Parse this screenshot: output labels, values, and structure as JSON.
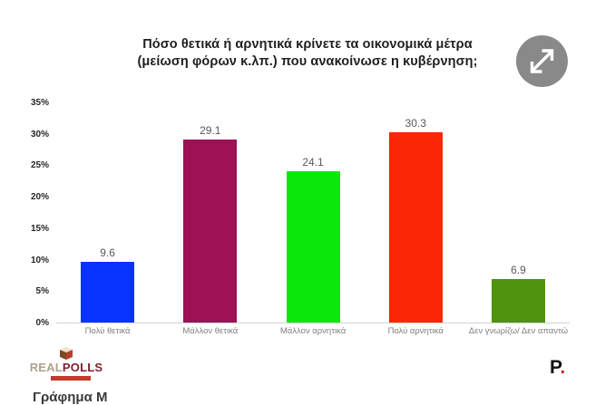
{
  "chart_data": {
    "type": "bar",
    "title": "Πόσο θετικά ή αρνητικά κρίνετε τα οικονομικά μέτρα\n(μείωση φόρων κ.λπ.) που ανακοίνωσε η κυβέρνηση;",
    "categories": [
      "Πολύ θετικά",
      "Μάλλον θετικά",
      "Μάλλον αρνητικά",
      "Πολύ αρνητικά",
      "Δεν γνωρίζω/ Δεν απαντώ"
    ],
    "values": [
      9.6,
      29.1,
      24.1,
      30.3,
      6.9
    ],
    "colors": [
      "#0933ff",
      "#9c1255",
      "#0ce80b",
      "#fb2605",
      "#4e920d"
    ],
    "y_ticks": [
      "35%",
      "30%",
      "25%",
      "20%",
      "15%",
      "10%",
      "5%",
      "0%"
    ],
    "ylim": [
      0,
      35
    ],
    "grid": false,
    "legend": "none",
    "value_labels": true,
    "xlabel": "",
    "ylabel": ""
  },
  "icons": {
    "expand": "diagonal-resize-arrow"
  },
  "branding": {
    "realpolls_real": "REAL",
    "realpolls_polls": "POLLS",
    "protagon_letter": "P",
    "protagon_dot": "."
  },
  "caption": "Γράφημα Μ"
}
